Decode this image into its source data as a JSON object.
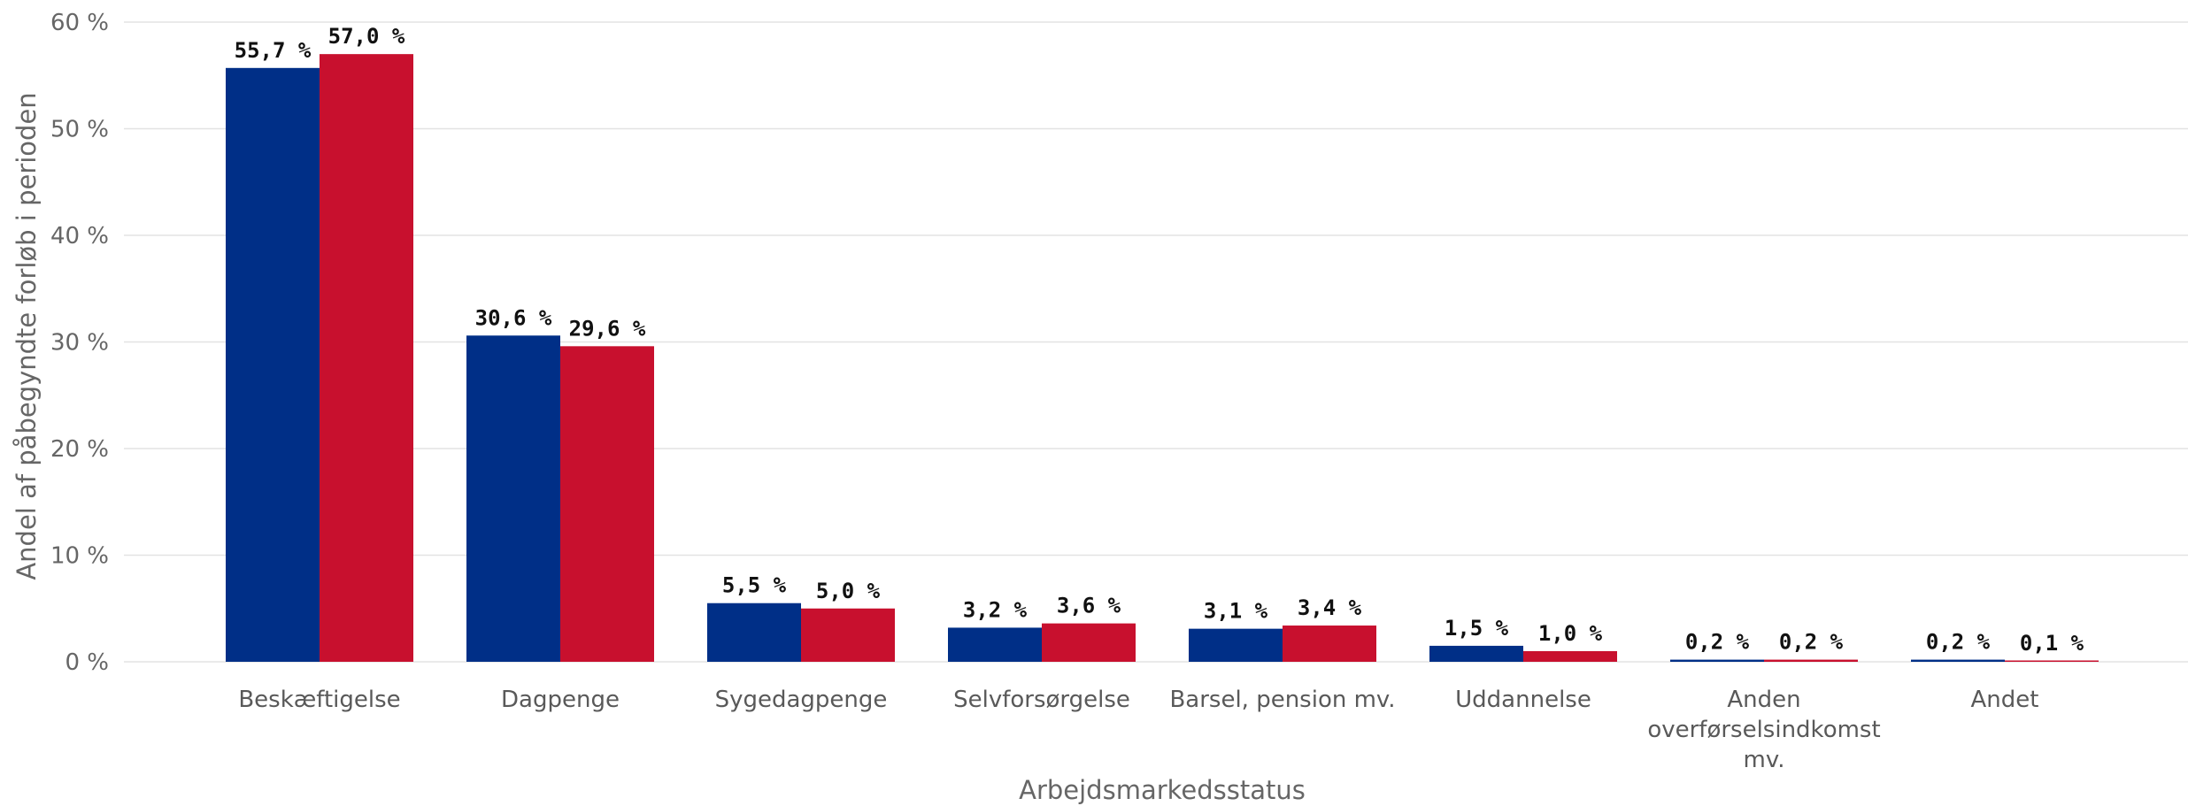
{
  "chart_data": {
    "type": "bar",
    "categories": [
      [
        "Beskæftigelse"
      ],
      [
        "Dagpenge"
      ],
      [
        "Sygedagpenge"
      ],
      [
        "Selvforsørgelse"
      ],
      [
        "Barsel, pension mv."
      ],
      [
        "Uddannelse"
      ],
      [
        "Anden",
        "overførselsindkomst",
        "mv."
      ],
      [
        "Andet"
      ]
    ],
    "series": [
      {
        "color": "#002F87",
        "values": [
          55.7,
          30.6,
          5.5,
          3.2,
          3.1,
          1.5,
          0.2,
          0.2
        ],
        "labels": [
          "55,7 %",
          "30,6 %",
          "5,5 %",
          "3,2 %",
          "3,1 %",
          "1,5 %",
          "0,2 %",
          "0,2 %"
        ]
      },
      {
        "color": "#C8102E",
        "values": [
          57.0,
          29.6,
          5.0,
          3.6,
          3.4,
          1.0,
          0.2,
          0.1
        ],
        "labels": [
          "57,0 %",
          "29,6 %",
          "5,0 %",
          "3,6 %",
          "3,4 %",
          "1,0 %",
          "0,2 %",
          "0,1 %"
        ]
      }
    ],
    "ylim": [
      0,
      60
    ],
    "yticks": [
      0,
      10,
      20,
      30,
      40,
      50,
      60
    ],
    "ytick_labels": [
      "0 %",
      "10 %",
      "20 %",
      "30 %",
      "40 %",
      "50 %",
      "60 %"
    ],
    "xlabel": "Arbejdsmarkedsstatus",
    "ylabel": "Andel af påbegyndte forløb i perioden",
    "grid": true,
    "legend": "none"
  }
}
